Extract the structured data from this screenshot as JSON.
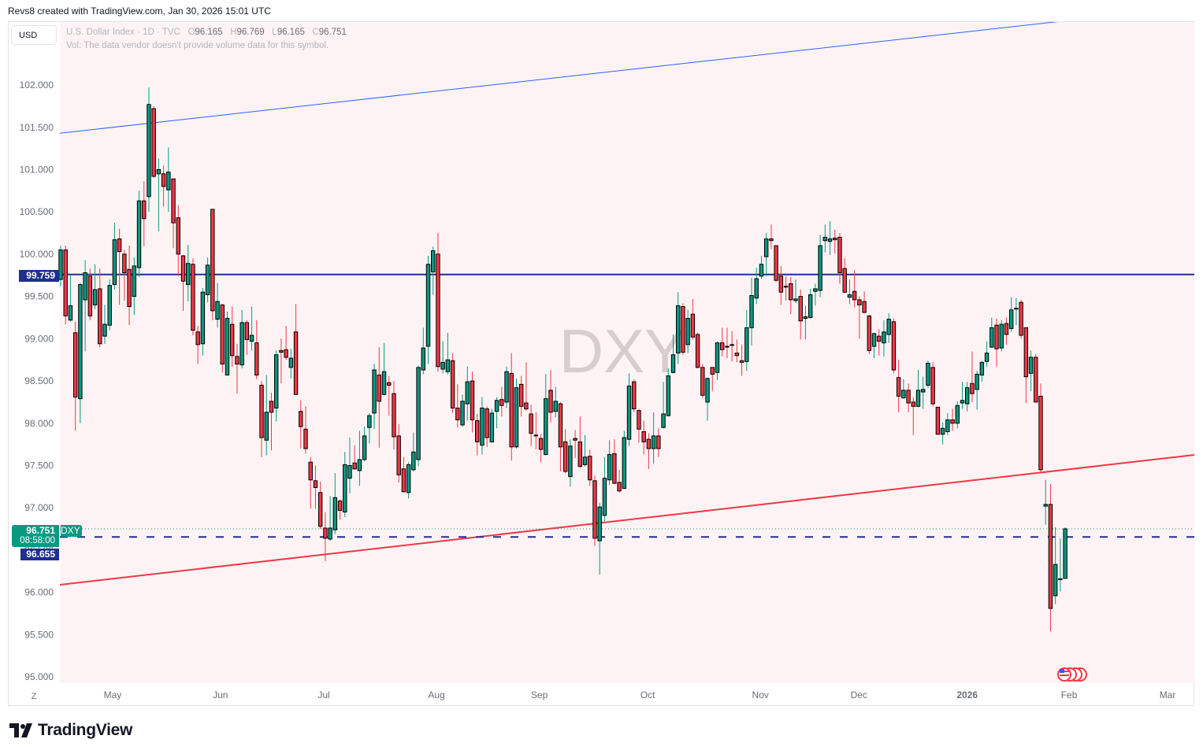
{
  "credit": "Revs8 created with TradingView.com, Jan 30, 2026 15:01 UTC",
  "currency_button": "USD",
  "legend": {
    "symbol": "U.S. Dollar Index · 1D · TVC",
    "o_label": "O",
    "o_value": "96.165",
    "h_label": "H",
    "h_value": "96.769",
    "l_label": "L",
    "l_value": "96.165",
    "c_label": "C",
    "c_value": "96.751",
    "volume_note": "Vol: The data vendor doesn't provide volume data for this symbol."
  },
  "watermark": "DXY",
  "price_labels": {
    "last_price": "96.751",
    "countdown": "08:58:00",
    "symbol_tag": "DXY",
    "dashed_line_price": "96.655",
    "horizontal_line_price": "99.759"
  },
  "time_axis_icon": "Z",
  "event_icon": "us-flag-economic-events-icon",
  "logo_text": "TradingView",
  "colors": {
    "up": "#089981",
    "down": "#f23645",
    "plot_background": "#fdf3f4",
    "horizontal_line": "#1e2f8f",
    "blue_trendline": "#2962ff",
    "red_trendline": "#f23645"
  },
  "chart_data": {
    "type": "candlestick",
    "title": "U.S. Dollar Index · 1D · TVC",
    "interval": "1D",
    "y_axis_side": "left",
    "ylim": [
      94.926,
      102.745
    ],
    "y_ticks": [
      "102.000",
      "101.500",
      "101.000",
      "100.500",
      "100.000",
      "99.500",
      "99.000",
      "98.500",
      "98.000",
      "97.500",
      "97.000",
      "96.500",
      "96.000",
      "95.500",
      "95.000"
    ],
    "x_ticks": [
      "May",
      "Jun",
      "Jul",
      "Aug",
      "Sep",
      "Oct",
      "Nov",
      "Dec",
      "2026",
      "Feb",
      "Mar"
    ],
    "grid": false,
    "ohlc_fields": [
      "open",
      "high",
      "low",
      "close"
    ],
    "candles": [
      [
        99.7,
        100.1,
        99.62,
        100.05
      ],
      [
        100.05,
        100.1,
        99.17,
        99.27
      ],
      [
        99.22,
        99.75,
        99.2,
        99.39
      ],
      [
        99.07,
        99.2,
        97.91,
        98.31
      ],
      [
        98.29,
        99.66,
        98.0,
        99.64
      ],
      [
        99.46,
        99.93,
        98.85,
        99.78
      ],
      [
        99.74,
        99.83,
        99.22,
        99.27
      ],
      [
        99.4,
        99.88,
        99.35,
        99.58
      ],
      [
        99.59,
        99.83,
        98.9,
        98.94
      ],
      [
        99.03,
        99.4,
        98.94,
        99.17
      ],
      [
        99.16,
        99.7,
        99.1,
        99.63
      ],
      [
        99.64,
        100.37,
        99.58,
        100.17
      ],
      [
        100.18,
        100.3,
        99.4,
        100.03
      ],
      [
        100.0,
        100.05,
        99.45,
        99.78
      ],
      [
        99.82,
        100.1,
        99.16,
        99.38
      ],
      [
        99.5,
        99.96,
        99.28,
        99.86
      ],
      [
        99.84,
        100.75,
        99.73,
        100.63
      ],
      [
        100.63,
        100.86,
        100.09,
        100.42
      ],
      [
        100.68,
        101.97,
        100.5,
        101.77
      ],
      [
        101.72,
        101.75,
        100.9,
        100.92
      ],
      [
        100.95,
        101.13,
        100.27,
        101.0
      ],
      [
        100.95,
        101.05,
        100.56,
        100.8
      ],
      [
        100.76,
        101.26,
        100.5,
        100.97
      ],
      [
        100.89,
        100.89,
        100.07,
        100.37
      ],
      [
        100.43,
        100.58,
        99.74,
        100.0
      ],
      [
        99.98,
        99.99,
        99.33,
        99.68
      ],
      [
        99.64,
        100.11,
        99.44,
        99.89
      ],
      [
        99.88,
        99.95,
        99.04,
        99.1
      ],
      [
        99.08,
        99.15,
        98.7,
        98.93
      ],
      [
        98.94,
        99.6,
        98.8,
        99.55
      ],
      [
        99.52,
        99.96,
        99.43,
        99.87
      ],
      [
        100.53,
        100.53,
        99.22,
        99.33
      ],
      [
        99.23,
        99.66,
        99.13,
        99.44
      ],
      [
        99.4,
        99.41,
        98.6,
        98.7
      ],
      [
        98.57,
        99.32,
        98.57,
        99.24
      ],
      [
        99.17,
        99.38,
        98.67,
        98.8
      ],
      [
        98.79,
        98.94,
        98.35,
        98.7
      ],
      [
        98.69,
        99.34,
        98.65,
        99.19
      ],
      [
        99.19,
        99.22,
        98.81,
        98.99
      ],
      [
        98.97,
        99.38,
        98.86,
        99.04
      ],
      [
        98.95,
        99.22,
        98.52,
        98.57
      ],
      [
        98.45,
        98.5,
        97.6,
        97.83
      ],
      [
        97.8,
        98.57,
        97.62,
        98.13
      ],
      [
        98.26,
        98.36,
        97.68,
        98.13
      ],
      [
        98.18,
        98.86,
        98.02,
        98.81
      ],
      [
        98.86,
        99.0,
        98.47,
        98.84
      ],
      [
        98.87,
        99.15,
        98.75,
        98.78
      ],
      [
        98.66,
        98.88,
        98.53,
        98.77
      ],
      [
        99.08,
        99.41,
        98.34,
        98.34
      ],
      [
        98.14,
        98.27,
        97.7,
        97.96
      ],
      [
        97.93,
        98.2,
        97.64,
        97.7
      ],
      [
        97.54,
        97.6,
        96.99,
        97.33
      ],
      [
        97.32,
        97.5,
        96.99,
        97.24
      ],
      [
        97.18,
        97.31,
        96.75,
        96.78
      ],
      [
        96.76,
        96.95,
        96.37,
        96.64
      ],
      [
        96.63,
        97.14,
        96.61,
        96.76
      ],
      [
        96.74,
        97.41,
        96.69,
        97.12
      ],
      [
        97.08,
        97.1,
        96.86,
        96.97
      ],
      [
        96.95,
        97.66,
        96.89,
        97.51
      ],
      [
        97.35,
        97.83,
        97.17,
        97.5
      ],
      [
        97.53,
        97.74,
        97.45,
        97.46
      ],
      [
        97.44,
        97.91,
        97.26,
        97.57
      ],
      [
        97.57,
        97.96,
        97.55,
        97.85
      ],
      [
        97.95,
        98.12,
        97.76,
        98.09
      ],
      [
        98.12,
        98.7,
        97.93,
        98.63
      ],
      [
        98.57,
        98.9,
        97.71,
        98.26
      ],
      [
        98.34,
        98.95,
        98.33,
        98.61
      ],
      [
        98.48,
        98.56,
        98.09,
        98.45
      ],
      [
        98.35,
        98.5,
        97.69,
        97.84
      ],
      [
        97.85,
        97.99,
        97.3,
        97.39
      ],
      [
        97.46,
        97.6,
        97.18,
        97.19
      ],
      [
        97.18,
        97.54,
        97.11,
        97.51
      ],
      [
        97.45,
        97.89,
        97.43,
        97.66
      ],
      [
        97.57,
        98.68,
        97.49,
        98.66
      ],
      [
        98.63,
        99.13,
        98.58,
        98.89
      ],
      [
        98.91,
        99.98,
        98.7,
        99.88
      ],
      [
        99.79,
        100.09,
        99.52,
        100.04
      ],
      [
        100.0,
        100.25,
        98.61,
        98.67
      ],
      [
        98.64,
        98.97,
        98.59,
        98.72
      ],
      [
        98.61,
        99.07,
        98.58,
        98.75
      ],
      [
        98.74,
        98.83,
        98.12,
        98.18
      ],
      [
        98.18,
        98.46,
        97.95,
        98.04
      ],
      [
        97.98,
        98.34,
        97.96,
        98.26
      ],
      [
        98.23,
        98.67,
        98.03,
        98.49
      ],
      [
        98.5,
        98.61,
        97.89,
        98.04
      ],
      [
        98.03,
        98.11,
        97.62,
        97.78
      ],
      [
        97.74,
        98.31,
        97.63,
        98.18
      ],
      [
        98.17,
        98.2,
        97.72,
        97.83
      ],
      [
        97.78,
        98.17,
        97.77,
        98.12
      ],
      [
        98.14,
        98.31,
        97.94,
        98.27
      ],
      [
        98.28,
        98.43,
        98.08,
        98.21
      ],
      [
        98.25,
        98.67,
        98.18,
        98.61
      ],
      [
        98.59,
        98.83,
        97.56,
        97.72
      ],
      [
        97.72,
        98.53,
        97.7,
        98.42
      ],
      [
        98.46,
        98.56,
        98.08,
        98.2
      ],
      [
        98.24,
        98.72,
        98.15,
        98.17
      ],
      [
        98.11,
        98.22,
        97.73,
        97.88
      ],
      [
        97.86,
        98.13,
        97.69,
        97.85
      ],
      [
        97.82,
        97.87,
        97.54,
        97.69
      ],
      [
        97.63,
        98.58,
        97.62,
        98.29
      ],
      [
        98.39,
        98.63,
        98.01,
        98.13
      ],
      [
        98.14,
        98.43,
        98.07,
        98.26
      ],
      [
        98.23,
        98.25,
        97.43,
        97.72
      ],
      [
        97.78,
        97.93,
        97.41,
        97.43
      ],
      [
        97.37,
        97.81,
        97.25,
        97.73
      ],
      [
        97.82,
        97.92,
        97.59,
        97.8
      ],
      [
        97.78,
        98.08,
        97.47,
        97.49
      ],
      [
        97.51,
        97.86,
        97.49,
        97.6
      ],
      [
        97.61,
        97.69,
        97.26,
        97.33
      ],
      [
        97.32,
        97.38,
        96.55,
        96.64
      ],
      [
        96.61,
        97.06,
        96.21,
        97.01
      ],
      [
        96.91,
        97.6,
        96.84,
        97.35
      ],
      [
        97.33,
        97.8,
        97.27,
        97.63
      ],
      [
        97.64,
        97.81,
        97.28,
        97.29
      ],
      [
        97.3,
        97.45,
        97.18,
        97.2
      ],
      [
        97.23,
        97.91,
        97.22,
        97.83
      ],
      [
        97.81,
        98.59,
        97.73,
        98.44
      ],
      [
        98.49,
        98.52,
        98.13,
        98.17
      ],
      [
        98.15,
        98.17,
        97.77,
        97.93
      ],
      [
        97.9,
        98.03,
        97.63,
        97.78
      ],
      [
        97.81,
        97.88,
        97.46,
        97.7
      ],
      [
        97.7,
        98.13,
        97.52,
        97.85
      ],
      [
        97.85,
        97.94,
        97.6,
        97.7
      ],
      [
        97.95,
        98.49,
        97.94,
        98.11
      ],
      [
        98.09,
        98.65,
        98.08,
        98.56
      ],
      [
        98.6,
        99.05,
        98.59,
        98.81
      ],
      [
        98.83,
        99.55,
        98.7,
        99.39
      ],
      [
        99.38,
        99.42,
        98.81,
        98.84
      ],
      [
        98.93,
        99.34,
        98.83,
        99.24
      ],
      [
        99.29,
        99.47,
        98.99,
        99.02
      ],
      [
        99.05,
        99.07,
        98.65,
        98.66
      ],
      [
        98.66,
        98.7,
        98.3,
        98.33
      ],
      [
        98.25,
        98.54,
        98.03,
        98.53
      ],
      [
        98.66,
        98.66,
        98.38,
        98.58
      ],
      [
        98.6,
        98.97,
        98.51,
        98.95
      ],
      [
        98.95,
        99.13,
        98.79,
        98.87
      ],
      [
        98.91,
        99.13,
        98.77,
        98.9
      ],
      [
        98.93,
        99.09,
        98.73,
        98.92
      ],
      [
        98.83,
        98.99,
        98.72,
        98.8
      ],
      [
        98.74,
        98.93,
        98.56,
        98.72
      ],
      [
        98.73,
        99.34,
        98.62,
        99.13
      ],
      [
        99.13,
        99.72,
        98.92,
        99.51
      ],
      [
        99.48,
        99.84,
        99.41,
        99.71
      ],
      [
        99.74,
        99.98,
        99.71,
        99.88
      ],
      [
        99.97,
        100.25,
        99.74,
        100.18
      ],
      [
        100.18,
        100.35,
        100.06,
        100.16
      ],
      [
        100.1,
        100.1,
        99.67,
        99.69
      ],
      [
        99.74,
        99.86,
        99.4,
        99.55
      ],
      [
        99.62,
        99.74,
        99.45,
        99.61
      ],
      [
        99.65,
        99.73,
        99.29,
        99.46
      ],
      [
        99.45,
        99.7,
        99.42,
        99.47
      ],
      [
        99.5,
        99.58,
        98.99,
        99.21
      ],
      [
        99.24,
        99.39,
        98.99,
        99.26
      ],
      [
        99.25,
        99.59,
        99.24,
        99.52
      ],
      [
        99.56,
        99.65,
        99.39,
        99.59
      ],
      [
        99.57,
        100.23,
        99.49,
        100.1
      ],
      [
        100.16,
        100.35,
        100.02,
        100.2
      ],
      [
        100.15,
        100.39,
        99.99,
        100.18
      ],
      [
        100.19,
        100.29,
        100.01,
        100.17
      ],
      [
        100.2,
        100.25,
        99.65,
        99.78
      ],
      [
        99.83,
        99.95,
        99.54,
        99.55
      ],
      [
        99.49,
        99.7,
        99.41,
        99.52
      ],
      [
        99.56,
        99.81,
        99.37,
        99.46
      ],
      [
        99.46,
        99.5,
        99.0,
        99.4
      ],
      [
        99.44,
        99.56,
        99.3,
        99.31
      ],
      [
        99.27,
        99.28,
        98.82,
        98.86
      ],
      [
        98.91,
        99.07,
        98.77,
        99.06
      ],
      [
        99.03,
        99.11,
        98.8,
        98.97
      ],
      [
        98.95,
        99.22,
        98.79,
        99.08
      ],
      [
        99.05,
        99.3,
        98.95,
        99.23
      ],
      [
        99.2,
        99.24,
        98.59,
        98.63
      ],
      [
        98.54,
        98.75,
        98.13,
        98.32
      ],
      [
        98.3,
        98.52,
        98.29,
        98.39
      ],
      [
        98.39,
        98.47,
        98.13,
        98.24
      ],
      [
        98.25,
        98.31,
        97.86,
        98.2
      ],
      [
        98.2,
        98.63,
        98.19,
        98.39
      ],
      [
        98.37,
        98.55,
        98.17,
        98.4
      ],
      [
        98.45,
        98.74,
        98.42,
        98.71
      ],
      [
        98.66,
        98.72,
        98.2,
        98.23
      ],
      [
        98.19,
        98.19,
        97.86,
        97.87
      ],
      [
        97.87,
        98.01,
        97.75,
        97.94
      ],
      [
        97.9,
        98.12,
        97.86,
        98.04
      ],
      [
        98.04,
        98.17,
        97.91,
        98.0
      ],
      [
        98.0,
        98.26,
        97.94,
        98.21
      ],
      [
        98.24,
        98.49,
        98.17,
        98.27
      ],
      [
        98.23,
        98.49,
        98.14,
        98.42
      ],
      [
        98.47,
        98.85,
        98.25,
        98.35
      ],
      [
        98.4,
        98.62,
        98.16,
        98.58
      ],
      [
        98.57,
        98.74,
        98.49,
        98.72
      ],
      [
        98.73,
        98.97,
        98.67,
        98.83
      ],
      [
        98.9,
        99.25,
        98.89,
        99.13
      ],
      [
        99.16,
        99.24,
        98.67,
        98.88
      ],
      [
        98.89,
        99.22,
        98.85,
        99.17
      ],
      [
        99.18,
        99.25,
        98.93,
        99.05
      ],
      [
        99.12,
        99.49,
        99.08,
        99.34
      ],
      [
        99.36,
        99.48,
        99.16,
        99.36
      ],
      [
        99.43,
        99.46,
        99.0,
        99.04
      ],
      [
        99.13,
        99.13,
        98.24,
        98.55
      ],
      [
        98.59,
        98.86,
        98.38,
        98.78
      ],
      [
        98.78,
        98.82,
        98.25,
        98.25
      ],
      [
        98.32,
        98.47,
        97.42,
        97.45
      ],
      [
        97.02,
        97.33,
        96.8,
        97.04
      ],
      [
        97.04,
        97.28,
        95.54,
        95.81
      ],
      [
        95.96,
        96.77,
        95.86,
        96.33
      ],
      [
        96.15,
        96.64,
        96.01,
        96.16
      ],
      [
        96.165,
        96.769,
        96.165,
        96.751
      ]
    ],
    "horizontal_lines": [
      {
        "price": 99.759,
        "style": "solid",
        "color": "#1e2f8f"
      },
      {
        "price": 96.655,
        "style": "dashed",
        "color": "#1e2f8f"
      },
      {
        "price": 96.751,
        "style": "dotted",
        "color": "#089981"
      }
    ],
    "trendlines": [
      {
        "color": "#2962ff",
        "price_at_left_edge": 101.43,
        "price_at_right_edge": 102.93
      },
      {
        "color": "#f23645",
        "price_at_left_edge": 96.09,
        "price_at_right_edge": 97.625
      }
    ]
  }
}
